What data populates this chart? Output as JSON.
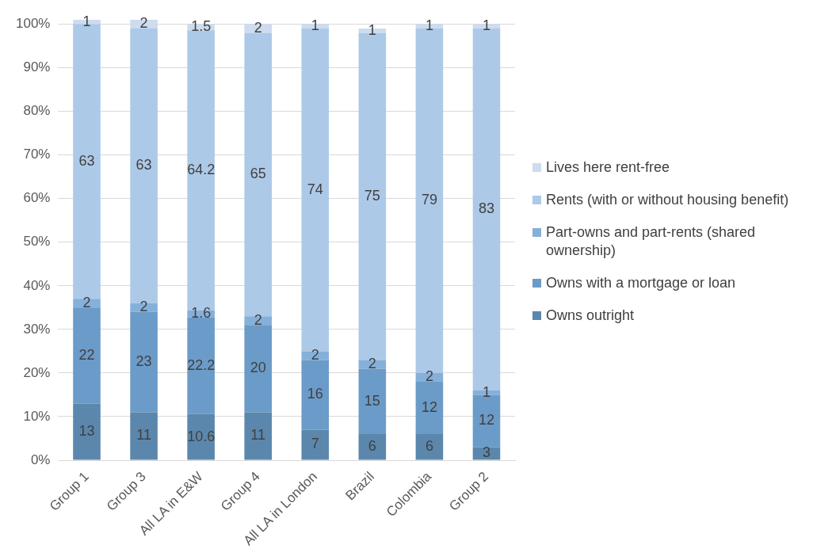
{
  "chart_data": {
    "type": "bar",
    "stacked": true,
    "data_labels": true,
    "grid": "y",
    "legend": "right",
    "categories": [
      "Group 1",
      "Group 3",
      "All LA in E&W",
      "Group 4",
      "All LA in London",
      "Brazil",
      "Colombia",
      "Group 2"
    ],
    "ylim": [
      0,
      101
    ],
    "yticks": [
      {
        "value": 0,
        "label": "0%"
      },
      {
        "value": 10,
        "label": "10%"
      },
      {
        "value": 20,
        "label": "20%"
      },
      {
        "value": 30,
        "label": "30%"
      },
      {
        "value": 40,
        "label": "40%"
      },
      {
        "value": 50,
        "label": "50%"
      },
      {
        "value": 60,
        "label": "60%"
      },
      {
        "value": 70,
        "label": "70%"
      },
      {
        "value": 80,
        "label": "80%"
      },
      {
        "value": 90,
        "label": "90%"
      },
      {
        "value": 100,
        "label": "100%"
      }
    ],
    "series": [
      {
        "name": "Owns outright",
        "color": "#5b87ad",
        "values": [
          13,
          11,
          10.6,
          11,
          7,
          6,
          6,
          3
        ]
      },
      {
        "name": "Owns with a mortgage or loan",
        "color": "#6b9bc8",
        "values": [
          22,
          23,
          22.2,
          20,
          16,
          15,
          12,
          12
        ]
      },
      {
        "name": "Part-owns and part-rents (shared ownership)",
        "color": "#85b0da",
        "values": [
          2,
          2,
          1.6,
          2,
          2,
          2,
          2,
          1
        ]
      },
      {
        "name": "Rents (with or without housing benefit)",
        "color": "#adc9e8",
        "values": [
          63,
          63,
          64.2,
          65,
          74,
          75,
          79,
          83
        ]
      },
      {
        "name": "Lives here rent-free",
        "color": "#cddcef",
        "values": [
          1,
          2,
          1.5,
          2,
          1,
          1,
          1,
          1
        ]
      }
    ]
  }
}
